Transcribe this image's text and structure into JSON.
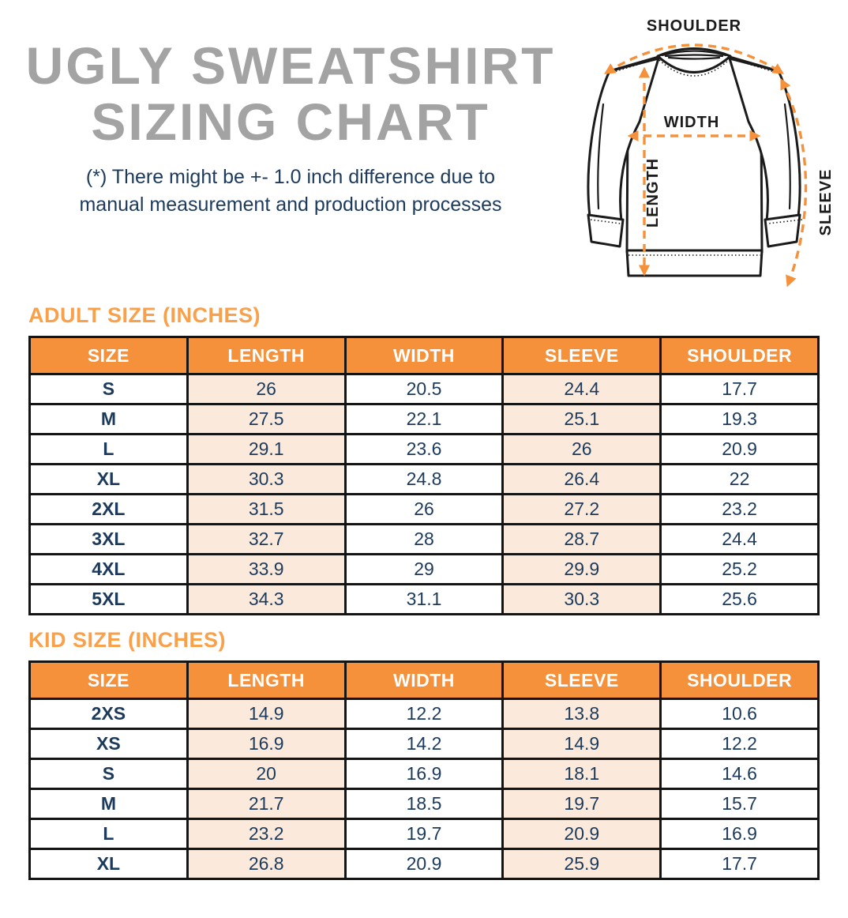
{
  "header": {
    "title_line1": "UGLY SWEATSHIRT",
    "title_line2": "SIZING CHART",
    "disclaimer_line1": "(*) There might be +- 1.0 inch difference due to",
    "disclaimer_line2": "manual measurement and production processes"
  },
  "diagram": {
    "shoulder_label": "SHOULDER",
    "width_label": "WIDTH",
    "length_label": "LENGTH",
    "sleeve_label": "SLEEVE"
  },
  "colors": {
    "accent_orange": "#F5913A",
    "heading_orange": "#F9A04A",
    "highlight_peach": "#FBEADB",
    "navy": "#1C3A5C",
    "title_gray": "#A3A3A3",
    "line_black": "#141414"
  },
  "adult_table": {
    "heading": "ADULT SIZE (INCHES)",
    "columns": [
      "SIZE",
      "LENGTH",
      "WIDTH",
      "SLEEVE",
      "SHOULDER"
    ],
    "rows": [
      [
        "S",
        "26",
        "20.5",
        "24.4",
        "17.7"
      ],
      [
        "M",
        "27.5",
        "22.1",
        "25.1",
        "19.3"
      ],
      [
        "L",
        "29.1",
        "23.6",
        "26",
        "20.9"
      ],
      [
        "XL",
        "30.3",
        "24.8",
        "26.4",
        "22"
      ],
      [
        "2XL",
        "31.5",
        "26",
        "27.2",
        "23.2"
      ],
      [
        "3XL",
        "32.7",
        "28",
        "28.7",
        "24.4"
      ],
      [
        "4XL",
        "33.9",
        "29",
        "29.9",
        "25.2"
      ],
      [
        "5XL",
        "34.3",
        "31.1",
        "30.3",
        "25.6"
      ]
    ]
  },
  "kid_table": {
    "heading": "KID SIZE (INCHES)",
    "columns": [
      "SIZE",
      "LENGTH",
      "WIDTH",
      "SLEEVE",
      "SHOULDER"
    ],
    "rows": [
      [
        "2XS",
        "14.9",
        "12.2",
        "13.8",
        "10.6"
      ],
      [
        "XS",
        "16.9",
        "14.2",
        "14.9",
        "12.2"
      ],
      [
        "S",
        "20",
        "16.9",
        "18.1",
        "14.6"
      ],
      [
        "M",
        "21.7",
        "18.5",
        "19.7",
        "15.7"
      ],
      [
        "L",
        "23.2",
        "19.7",
        "20.9",
        "16.9"
      ],
      [
        "XL",
        "26.8",
        "20.9",
        "25.9",
        "17.7"
      ]
    ]
  }
}
